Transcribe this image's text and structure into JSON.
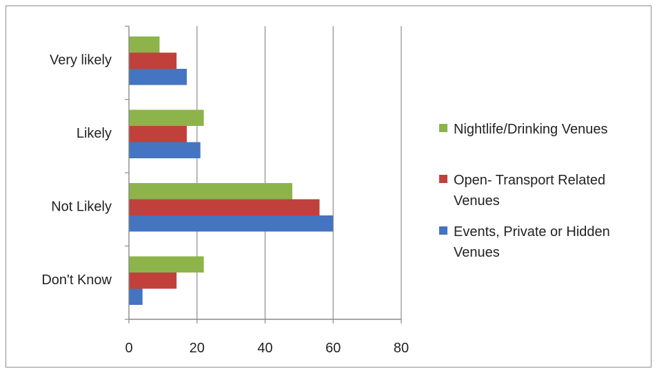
{
  "chart_data": {
    "type": "bar",
    "orientation": "horizontal",
    "categories": [
      "Very likely",
      "Likely",
      "Not Likely",
      "Don't Know"
    ],
    "series": [
      {
        "name": "Nightlife/Drinking Venues",
        "color": "#8cb44a",
        "values": [
          9,
          22,
          48,
          22
        ]
      },
      {
        "name": "Open- Transport Related Venues",
        "color": "#c0413c",
        "values": [
          14,
          17,
          56,
          14
        ]
      },
      {
        "name": "Events, Private or Hidden Venues",
        "color": "#4574c0",
        "values": [
          17,
          21,
          60,
          4
        ]
      }
    ],
    "xlim": [
      0,
      80
    ],
    "xticks": [
      "0",
      "20",
      "40",
      "60",
      "80"
    ],
    "grid": true,
    "legend_position": "right",
    "legend_labels": [
      [
        "Nightlife/Drinking Venues"
      ],
      [
        "Open- Transport Related",
        "Venues"
      ],
      [
        "Events, Private or Hidden",
        "Venues"
      ]
    ]
  }
}
